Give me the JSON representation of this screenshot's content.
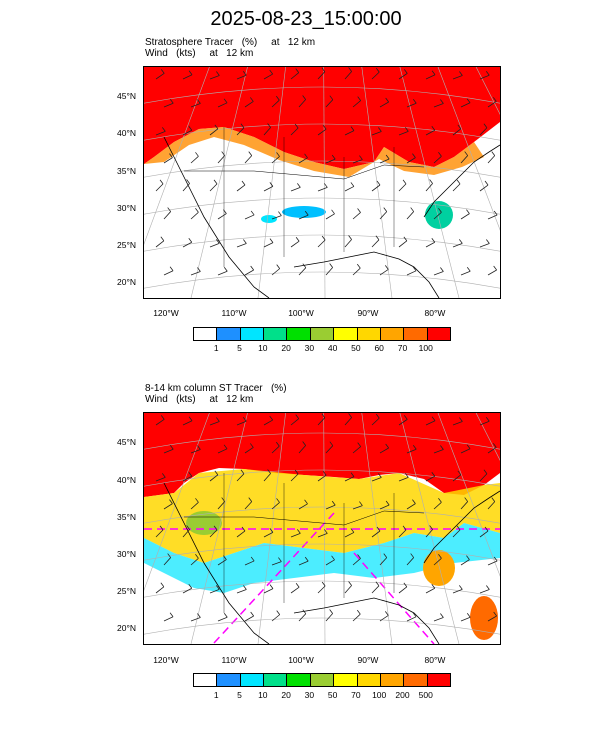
{
  "title": "2025-08-23_15:00:00",
  "panels": [
    {
      "title_line1": "Stratosphere Tracer   (%)     at   12 km",
      "title_line2": "Wind   (kts)     at   12 km",
      "lat_labels": [
        "45°N",
        "40°N",
        "35°N",
        "30°N",
        "25°N",
        "20°N"
      ],
      "lon_labels": [
        "120°W",
        "110°W",
        "100°W",
        "90°W",
        "80°W"
      ],
      "colorbar_labels": [
        "1",
        "5",
        "10",
        "20",
        "30",
        "40",
        "50",
        "60",
        "70",
        "100"
      ],
      "colorbar_colors": [
        "#ffffff",
        "#1e90ff",
        "#00e5ff",
        "#00e08a",
        "#00e000",
        "#9acd32",
        "#ffff00",
        "#ffd700",
        "#ffa500",
        "#ff6a00",
        "#ff0000"
      ]
    },
    {
      "title_line1": "8-14 km column ST Tracer   (%)",
      "title_line2": "Wind   (kts)     at   12 km",
      "lat_labels": [
        "45°N",
        "40°N",
        "35°N",
        "30°N",
        "25°N",
        "20°N"
      ],
      "lon_labels": [
        "120°W",
        "110°W",
        "100°W",
        "90°W",
        "80°W"
      ],
      "colorbar_labels": [
        "1",
        "5",
        "10",
        "20",
        "30",
        "50",
        "70",
        "100",
        "200",
        "500"
      ],
      "colorbar_colors": [
        "#ffffff",
        "#1e90ff",
        "#00e5ff",
        "#00e08a",
        "#00e000",
        "#9acd32",
        "#ffff00",
        "#ffd700",
        "#ffa500",
        "#ff6a00",
        "#ff0000"
      ]
    }
  ]
}
